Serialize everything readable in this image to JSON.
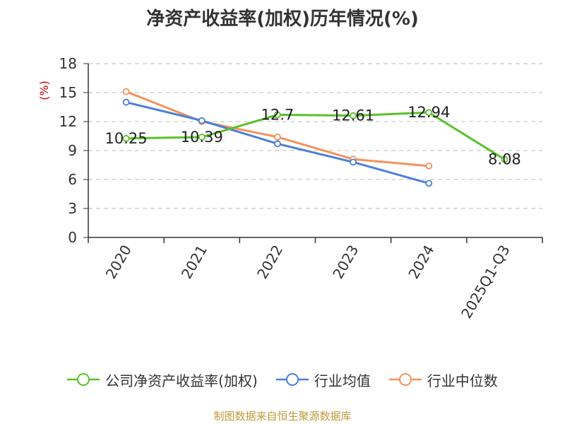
{
  "title": "净资产收益率(加权)历年情况(%)",
  "source": "制图数据来自恒生聚源数据库",
  "colors": {
    "company": "#5ac12a",
    "industry_avg": "#4a7fd8",
    "industry_median": "#f5915a",
    "axis": "#333333",
    "grid": "#bbbbbb",
    "unit": "#cc0000"
  },
  "chart_data": {
    "type": "line",
    "title": "净资产收益率(加权)历年情况(%)",
    "ylabel": "(%)",
    "xlabel": "",
    "ylim": [
      0,
      18
    ],
    "yticks": [
      0,
      3,
      6,
      9,
      12,
      15,
      18
    ],
    "categories": [
      "2020",
      "2021",
      "2022",
      "2023",
      "2024",
      "2025Q1-Q3"
    ],
    "grid": true,
    "legend_position": "bottom",
    "series": [
      {
        "name": "公司净资产收益率(加权)",
        "color_key": "company",
        "values": [
          10.25,
          10.39,
          12.7,
          12.61,
          12.94,
          8.08
        ],
        "labels": [
          "10.25",
          "10.39",
          "12.7",
          "12.61",
          "12.94",
          "8.08"
        ]
      },
      {
        "name": "行业均值",
        "color_key": "industry_avg",
        "values": [
          14.0,
          12.1,
          9.7,
          7.8,
          5.6,
          null
        ],
        "labels": []
      },
      {
        "name": "行业中位数",
        "color_key": "industry_median",
        "values": [
          15.1,
          12.0,
          10.4,
          8.1,
          7.4,
          null
        ],
        "labels": []
      }
    ]
  }
}
